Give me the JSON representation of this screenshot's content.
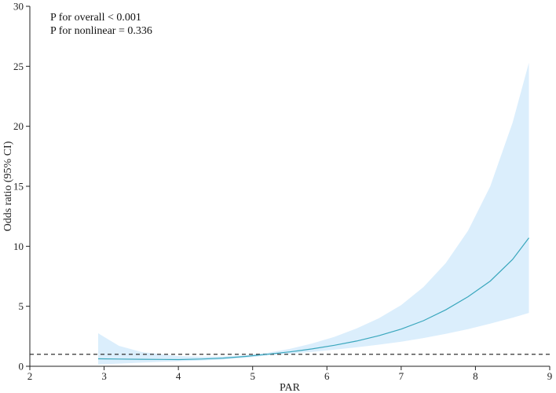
{
  "chart_data": {
    "type": "line",
    "title": "",
    "xlabel": "PAR",
    "ylabel": "Odds ratio (95% CI)",
    "xlim": [
      2,
      9
    ],
    "ylim": [
      0,
      30
    ],
    "x_ticks": [
      2,
      3,
      4,
      5,
      6,
      7,
      8,
      9
    ],
    "y_ticks": [
      0,
      5,
      10,
      15,
      20,
      25,
      30
    ],
    "grid": false,
    "legend": "none",
    "annotations": [
      "P for overall < 0.001",
      "P for nonlinear = 0.336"
    ],
    "reference_line": {
      "y": 1,
      "style": "dashed",
      "color": "#333333"
    },
    "line_color": "#3aa7bd",
    "band_color": "#dbeefc",
    "series": [
      {
        "x": [
          2.92,
          3.2,
          3.5,
          3.8,
          4.0,
          4.3,
          4.6,
          4.9,
          5.2,
          5.5,
          5.8,
          6.1,
          6.4,
          6.7,
          7.0,
          7.3,
          7.6,
          7.9,
          8.2,
          8.5,
          8.72
        ],
        "y": [
          0.62,
          0.6,
          0.58,
          0.57,
          0.56,
          0.6,
          0.68,
          0.82,
          1.0,
          1.2,
          1.45,
          1.75,
          2.1,
          2.55,
          3.1,
          3.8,
          4.7,
          5.8,
          7.1,
          8.9,
          10.7
        ],
        "lower": [
          0.15,
          0.22,
          0.3,
          0.38,
          0.42,
          0.48,
          0.56,
          0.7,
          0.9,
          1.05,
          1.2,
          1.38,
          1.58,
          1.8,
          2.05,
          2.35,
          2.7,
          3.1,
          3.55,
          4.05,
          4.45
        ],
        "upper": [
          2.75,
          1.7,
          1.2,
          0.98,
          0.85,
          0.8,
          0.82,
          0.92,
          1.12,
          1.45,
          1.9,
          2.45,
          3.15,
          4.0,
          5.1,
          6.6,
          8.6,
          11.3,
          15.0,
          20.3,
          25.3
        ]
      }
    ]
  }
}
